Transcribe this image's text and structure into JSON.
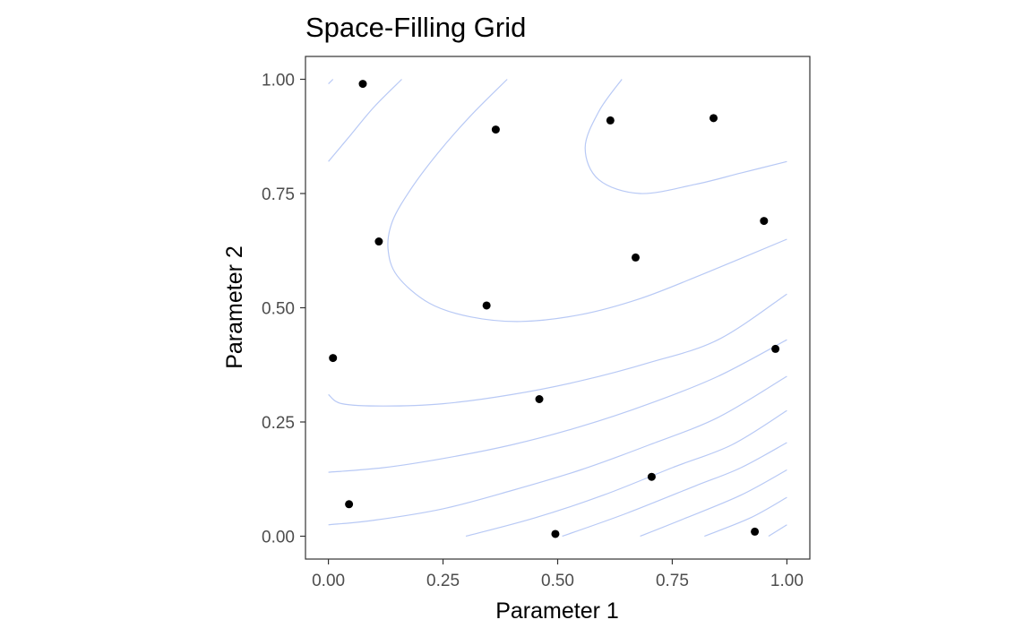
{
  "chart_data": {
    "type": "scatter",
    "title": "Space-Filling Grid",
    "xlabel": "Parameter 1",
    "ylabel": "Parameter 2",
    "xlim": [
      -0.05,
      1.05
    ],
    "ylim": [
      -0.05,
      1.05
    ],
    "x_ticks": [
      0.0,
      0.25,
      0.5,
      0.75,
      1.0
    ],
    "x_tick_labels": [
      "0.00",
      "0.25",
      "0.50",
      "0.75",
      "1.00"
    ],
    "y_ticks": [
      0.0,
      0.25,
      0.5,
      0.75,
      1.0
    ],
    "y_tick_labels": [
      "0.00",
      "0.25",
      "0.50",
      "0.75",
      "1.00"
    ],
    "grid": false,
    "point_color": "#000000",
    "contour_color": "#b8c9f5",
    "points": [
      {
        "x": 0.075,
        "y": 0.99
      },
      {
        "x": 0.365,
        "y": 0.89
      },
      {
        "x": 0.615,
        "y": 0.91
      },
      {
        "x": 0.84,
        "y": 0.915
      },
      {
        "x": 0.95,
        "y": 0.69
      },
      {
        "x": 0.11,
        "y": 0.645
      },
      {
        "x": 0.67,
        "y": 0.61
      },
      {
        "x": 0.345,
        "y": 0.505
      },
      {
        "x": 0.01,
        "y": 0.39
      },
      {
        "x": 0.975,
        "y": 0.41
      },
      {
        "x": 0.46,
        "y": 0.3
      },
      {
        "x": 0.705,
        "y": 0.13
      },
      {
        "x": 0.045,
        "y": 0.07
      },
      {
        "x": 0.495,
        "y": 0.005
      },
      {
        "x": 0.93,
        "y": 0.01
      }
    ],
    "contours": [
      [
        [
          0.0,
          0.99
        ],
        [
          0.01,
          1.0
        ]
      ],
      [
        [
          0.0,
          0.82
        ],
        [
          0.05,
          0.88
        ],
        [
          0.1,
          0.94
        ],
        [
          0.16,
          1.0
        ]
      ],
      [
        [
          0.39,
          1.0
        ],
        [
          0.31,
          0.92
        ],
        [
          0.24,
          0.84
        ],
        [
          0.18,
          0.76
        ],
        [
          0.14,
          0.69
        ],
        [
          0.13,
          0.63
        ],
        [
          0.15,
          0.57
        ],
        [
          0.22,
          0.51
        ],
        [
          0.31,
          0.48
        ],
        [
          0.42,
          0.47
        ],
        [
          0.55,
          0.485
        ],
        [
          0.68,
          0.52
        ],
        [
          0.82,
          0.575
        ],
        [
          1.0,
          0.65
        ]
      ],
      [
        [
          0.64,
          1.0
        ],
        [
          0.59,
          0.93
        ],
        [
          0.56,
          0.85
        ],
        [
          0.59,
          0.78
        ],
        [
          0.68,
          0.75
        ],
        [
          0.8,
          0.77
        ],
        [
          0.9,
          0.795
        ],
        [
          1.0,
          0.82
        ]
      ],
      [
        [
          0.0,
          0.31
        ],
        [
          0.03,
          0.29
        ],
        [
          0.12,
          0.285
        ],
        [
          0.25,
          0.29
        ],
        [
          0.4,
          0.31
        ],
        [
          0.55,
          0.34
        ],
        [
          0.7,
          0.38
        ],
        [
          0.85,
          0.43
        ],
        [
          1.0,
          0.53
        ]
      ],
      [
        [
          0.0,
          0.14
        ],
        [
          0.12,
          0.15
        ],
        [
          0.25,
          0.17
        ],
        [
          0.4,
          0.2
        ],
        [
          0.55,
          0.24
        ],
        [
          0.7,
          0.29
        ],
        [
          0.85,
          0.35
        ],
        [
          1.0,
          0.43
        ]
      ],
      [
        [
          0.0,
          0.025
        ],
        [
          0.1,
          0.035
        ],
        [
          0.25,
          0.06
        ],
        [
          0.4,
          0.1
        ],
        [
          0.55,
          0.145
        ],
        [
          0.7,
          0.2
        ],
        [
          0.85,
          0.26
        ],
        [
          1.0,
          0.35
        ]
      ],
      [
        [
          0.3,
          0.0
        ],
        [
          0.45,
          0.04
        ],
        [
          0.6,
          0.09
        ],
        [
          0.75,
          0.15
        ],
        [
          0.88,
          0.2
        ],
        [
          1.0,
          0.275
        ]
      ],
      [
        [
          0.51,
          0.0
        ],
        [
          0.65,
          0.05
        ],
        [
          0.8,
          0.11
        ],
        [
          0.9,
          0.15
        ],
        [
          1.0,
          0.205
        ]
      ],
      [
        [
          0.68,
          0.0
        ],
        [
          0.78,
          0.04
        ],
        [
          0.9,
          0.09
        ],
        [
          1.0,
          0.145
        ]
      ],
      [
        [
          0.82,
          0.0
        ],
        [
          0.92,
          0.04
        ],
        [
          1.0,
          0.085
        ]
      ],
      [
        [
          0.96,
          0.0
        ],
        [
          1.0,
          0.025
        ]
      ]
    ]
  }
}
